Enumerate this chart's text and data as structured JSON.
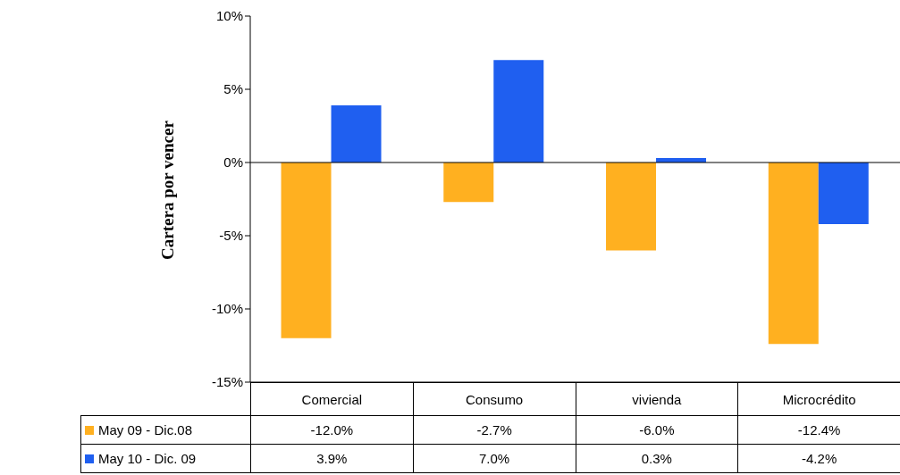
{
  "chart_data": {
    "type": "bar",
    "ylabel": "Cartera por vencer",
    "categories": [
      "Comercial",
      "Consumo",
      "vivienda",
      "Microcrédito"
    ],
    "series": [
      {
        "name": "May 09 - Dic.08",
        "color": "#ffb020",
        "values": [
          -12.0,
          -2.7,
          -6.0,
          -12.4
        ],
        "value_labels": [
          "-12.0%",
          "-2.7%",
          "-6.0%",
          "-12.4%"
        ]
      },
      {
        "name": "May 10 - Dic. 09",
        "color": "#1f5ff0",
        "values": [
          3.9,
          7.0,
          0.3,
          -4.2
        ],
        "value_labels": [
          "3.9%",
          "7.0%",
          "0.3%",
          "-4.2%"
        ]
      }
    ],
    "ylim": [
      -15,
      10
    ],
    "yticks": [
      {
        "value": -15,
        "label": "-15%"
      },
      {
        "value": -10,
        "label": "-10%"
      },
      {
        "value": -5,
        "label": "-5%"
      },
      {
        "value": 0,
        "label": "0%"
      },
      {
        "value": 5,
        "label": "5%"
      },
      {
        "value": 10,
        "label": "10%"
      }
    ],
    "ref_lines": [
      {
        "axis": "y",
        "value": 0
      }
    ],
    "legend": "bottom"
  }
}
